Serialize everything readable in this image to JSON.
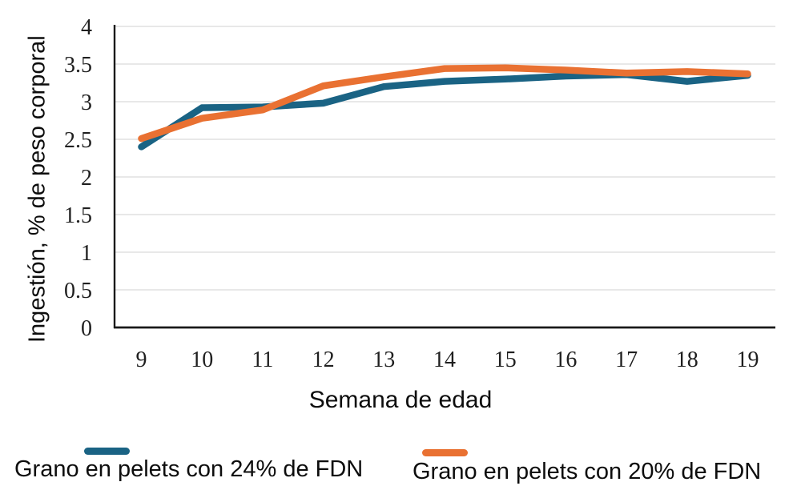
{
  "chart_data": {
    "type": "line",
    "title": "",
    "xlabel": "Semana de edad",
    "ylabel": "Ingestión, % de peso corporal",
    "x": [
      9,
      10,
      11,
      12,
      13,
      14,
      15,
      16,
      17,
      18,
      19
    ],
    "ylim": [
      0,
      4
    ],
    "yticks": [
      0,
      0.5,
      1,
      1.5,
      2,
      2.5,
      3,
      3.5,
      4
    ],
    "grid": true,
    "grid_color": "#D9D9D9",
    "axis_color": "#1A1A1A",
    "legend_position": "bottom",
    "series": [
      {
        "name": "Grano en pelets con 24% de FDN",
        "color": "#1A6384",
        "values": [
          2.4,
          2.92,
          2.93,
          2.98,
          3.2,
          3.27,
          3.3,
          3.34,
          3.36,
          3.27,
          3.35
        ]
      },
      {
        "name": "Grano en pelets con 20% de FDN",
        "color": "#E97132",
        "values": [
          2.51,
          2.78,
          2.89,
          3.21,
          3.33,
          3.44,
          3.45,
          3.42,
          3.38,
          3.4,
          3.37
        ]
      }
    ]
  }
}
